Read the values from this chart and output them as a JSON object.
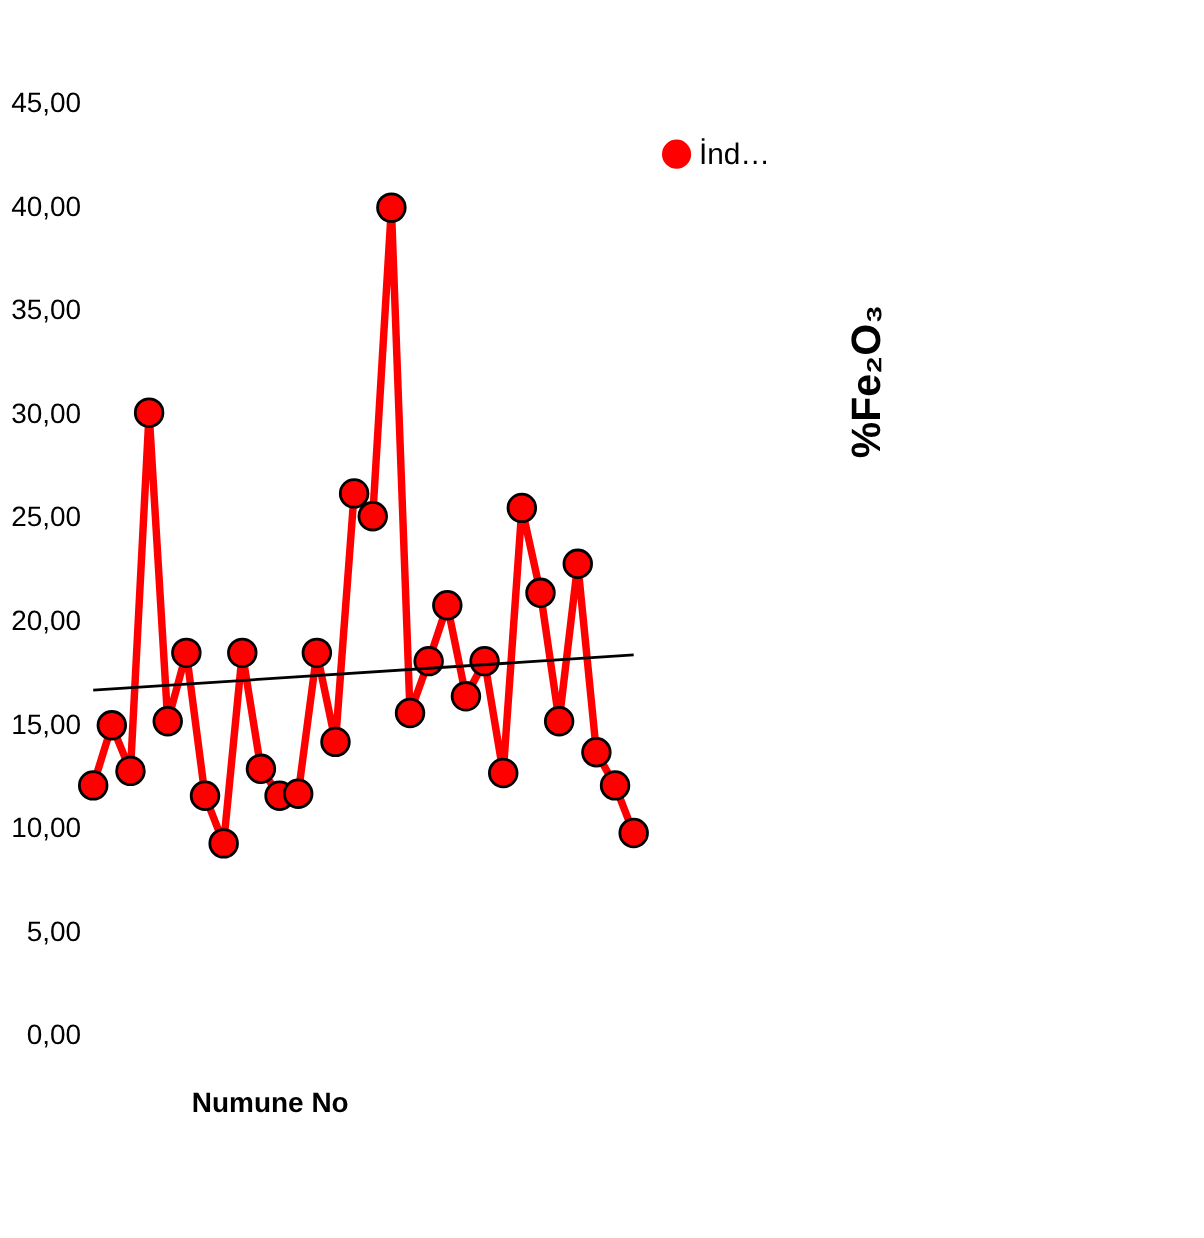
{
  "chart_data": {
    "type": "line",
    "xlabel": "Numune No",
    "annotations": [
      "%Fe₂O₃"
    ],
    "categories": [
      null,
      null,
      null,
      null,
      null,
      null,
      null,
      null,
      null,
      null,
      null,
      null,
      null,
      null,
      null,
      null,
      null,
      null,
      null,
      null,
      null,
      null,
      null,
      null,
      null,
      null,
      null,
      null,
      null,
      null
    ],
    "series": [
      {
        "name": "İnd…",
        "color": "#ff0000",
        "marker": "circle",
        "values": [
          12.0,
          14.9,
          12.7,
          30.0,
          15.1,
          18.4,
          11.5,
          9.2,
          18.4,
          12.8,
          11.5,
          11.6,
          18.4,
          14.1,
          26.1,
          25.0,
          39.9,
          15.5,
          18.0,
          20.7,
          16.3,
          18.0,
          12.6,
          25.4,
          21.3,
          15.1,
          22.7,
          13.6,
          12.0,
          9.7
        ]
      },
      {
        "type": "line",
        "color": "#000000",
        "marker": "none",
        "values": [
          16.6,
          null,
          null,
          null,
          null,
          null,
          null,
          null,
          null,
          null,
          null,
          null,
          null,
          null,
          null,
          null,
          null,
          null,
          null,
          null,
          null,
          null,
          null,
          null,
          null,
          null,
          null,
          null,
          null,
          18.3
        ]
      }
    ],
    "ylim": [
      0,
      45
    ],
    "yticks": [
      {
        "value": 0,
        "label": "0,00"
      },
      {
        "value": 5,
        "label": "5,00"
      },
      {
        "value": 10,
        "label": "10,00"
      },
      {
        "value": 15,
        "label": "15,00"
      },
      {
        "value": 20,
        "label": "20,00"
      },
      {
        "value": 25,
        "label": "25,00"
      },
      {
        "value": 30,
        "label": "30,00"
      },
      {
        "value": 35,
        "label": "35,00"
      },
      {
        "value": 40,
        "label": "40,00"
      },
      {
        "value": 45,
        "label": "45,00"
      }
    ],
    "grid": false,
    "legend": "top right",
    "tick_labels": "y"
  }
}
